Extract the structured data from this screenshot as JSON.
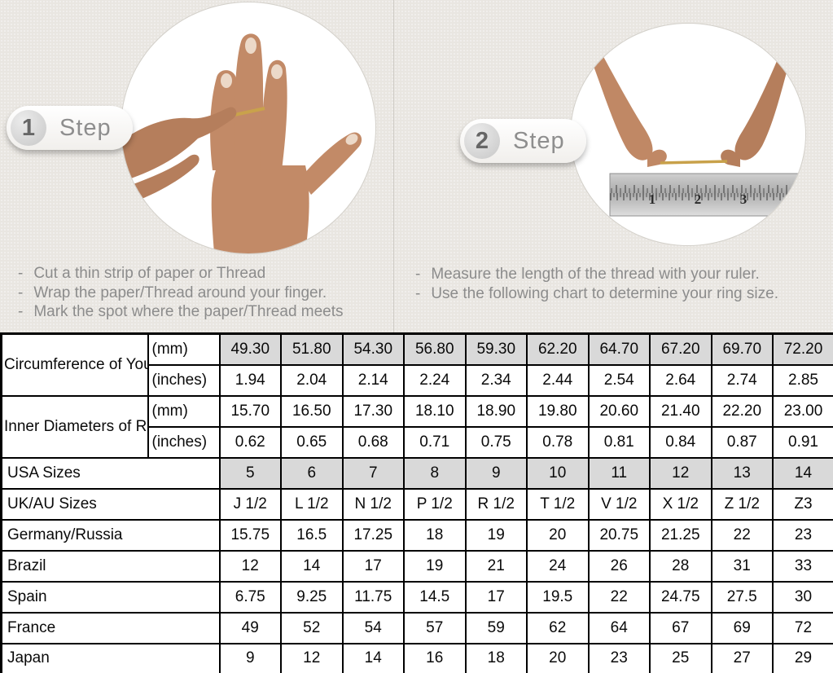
{
  "steps": [
    {
      "number": "1",
      "label": "Step",
      "image": "hand-with-thread-wrapped-around-finger",
      "instructions": [
        "Cut a thin strip of paper or Thread",
        "Wrap the paper/Thread around your finger.",
        "Mark the spot where the paper/Thread meets"
      ]
    },
    {
      "number": "2",
      "label": "Step",
      "image": "hands-measuring-thread-with-ruler",
      "ruler_numbers": [
        "1",
        "2",
        "3"
      ],
      "instructions": [
        "Measure the length of the thread with your ruler.",
        "Use the following chart to determine your ring size."
      ]
    }
  ],
  "table": {
    "highlight_color": "#d9d9d9",
    "border_color": "#000000",
    "rows": [
      {
        "group": "Circumference of Your Finger",
        "unit": "(mm)",
        "highlight": true,
        "values": [
          "49.30",
          "51.80",
          "54.30",
          "56.80",
          "59.30",
          "62.20",
          "64.70",
          "67.20",
          "69.70",
          "72.20"
        ]
      },
      {
        "unit": "(inches)",
        "highlight": false,
        "values": [
          "1.94",
          "2.04",
          "2.14",
          "2.24",
          "2.34",
          "2.44",
          "2.54",
          "2.64",
          "2.74",
          "2.85"
        ]
      },
      {
        "group": "Inner Diameters of Rings",
        "unit": "(mm)",
        "highlight": false,
        "values": [
          "15.70",
          "16.50",
          "17.30",
          "18.10",
          "18.90",
          "19.80",
          "20.60",
          "21.40",
          "22.20",
          "23.00"
        ]
      },
      {
        "unit": "(inches)",
        "highlight": false,
        "values": [
          "0.62",
          "0.65",
          "0.68",
          "0.71",
          "0.75",
          "0.78",
          "0.81",
          "0.84",
          "0.87",
          "0.91"
        ]
      },
      {
        "label": "USA Sizes",
        "highlight": true,
        "values": [
          "5",
          "6",
          "7",
          "8",
          "9",
          "10",
          "11",
          "12",
          "13",
          "14"
        ]
      },
      {
        "label": "UK/AU Sizes",
        "highlight": false,
        "values": [
          "J 1/2",
          "L 1/2",
          "N 1/2",
          "P 1/2",
          "R 1/2",
          "T 1/2",
          "V 1/2",
          "X 1/2",
          "Z 1/2",
          "Z3"
        ]
      },
      {
        "label": "Germany/Russia",
        "highlight": false,
        "values": [
          "15.75",
          "16.5",
          "17.25",
          "18",
          "19",
          "20",
          "20.75",
          "21.25",
          "22",
          "23"
        ]
      },
      {
        "label": "Brazil",
        "highlight": false,
        "values": [
          "12",
          "14",
          "17",
          "19",
          "21",
          "24",
          "26",
          "28",
          "31",
          "33"
        ]
      },
      {
        "label": "Spain",
        "highlight": false,
        "values": [
          "6.75",
          "9.25",
          "11.75",
          "14.5",
          "17",
          "19.5",
          "22",
          "24.75",
          "27.5",
          "30"
        ]
      },
      {
        "label": "France",
        "highlight": false,
        "values": [
          "49",
          "52",
          "54",
          "57",
          "59",
          "62",
          "64",
          "67",
          "69",
          "72"
        ]
      },
      {
        "label": "Japan",
        "highlight": false,
        "values": [
          "9",
          "12",
          "14",
          "16",
          "18",
          "20",
          "23",
          "25",
          "27",
          "29"
        ]
      }
    ]
  }
}
